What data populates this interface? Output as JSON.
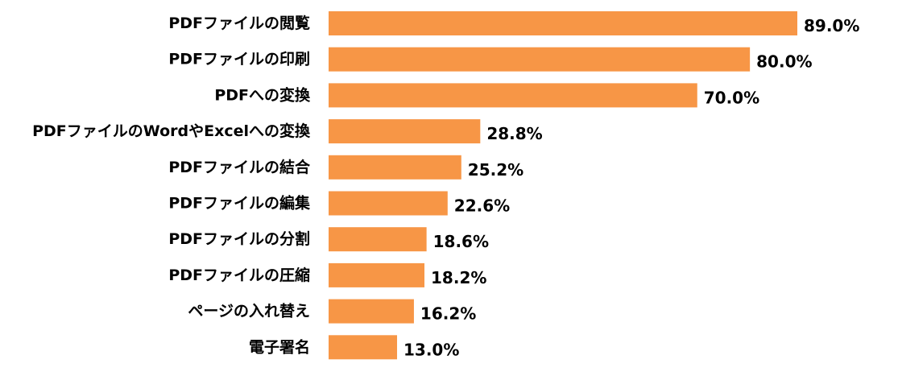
{
  "chart_data": {
    "type": "bar",
    "orientation": "horizontal",
    "categories": [
      "PDFファイルの閲覧",
      "PDFファイルの印刷",
      "PDFへの変換",
      "PDFファイルのWordやExcelへの変換",
      "PDFファイルの結合",
      "PDFファイルの編集",
      "PDFファイルの分割",
      "PDFファイルの圧縮",
      "ページの入れ替え",
      "電子署名"
    ],
    "values": [
      89.0,
      80.0,
      70.0,
      28.8,
      25.2,
      22.6,
      18.6,
      18.2,
      16.2,
      13.0
    ],
    "value_labels": [
      "89.0%",
      "80.0%",
      "70.0%",
      "28.8%",
      "25.2%",
      "22.6%",
      "18.6%",
      "18.2%",
      "16.2%",
      "13.0%"
    ],
    "unit": "%",
    "title": "",
    "xlabel": "",
    "ylabel": "",
    "xlim": [
      0,
      89.0
    ],
    "grid": false,
    "legend": "none",
    "bar_color": "#F79646"
  }
}
